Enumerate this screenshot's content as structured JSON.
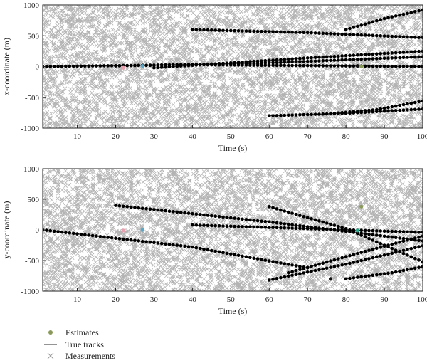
{
  "chart_data": [
    {
      "type": "scatter",
      "xlabel": "Time (s)",
      "ylabel": "x-coordinate (m)",
      "xlim": [
        1,
        100
      ],
      "ylim": [
        -1000,
        1000
      ],
      "x_ticks": [
        10,
        20,
        30,
        40,
        50,
        60,
        70,
        80,
        90,
        100
      ],
      "y_ticks": [
        -1000,
        -500,
        0,
        500,
        1000
      ],
      "grid": false,
      "measurements": {
        "name": "Measurements",
        "color": "#b3b3b3",
        "density": "dense",
        "range": [
          -1000,
          1000
        ]
      },
      "tracks": [
        {
          "points": [
            [
              1,
              0
            ],
            [
              40,
              30
            ],
            [
              100,
              0
            ]
          ]
        },
        {
          "points": [
            [
              20,
              10
            ],
            [
              60,
              60
            ],
            [
              100,
              160
            ]
          ]
        },
        {
          "points": [
            [
              30,
              -20
            ],
            [
              70,
              140
            ],
            [
              100,
              250
            ]
          ]
        },
        {
          "points": [
            [
              40,
              600
            ],
            [
              70,
              550
            ],
            [
              100,
              470
            ]
          ]
        },
        {
          "points": [
            [
              80,
              600
            ],
            [
              90,
              780
            ],
            [
              100,
              920
            ]
          ]
        },
        {
          "points": [
            [
              60,
              -800
            ],
            [
              80,
              -760
            ],
            [
              100,
              -690
            ]
          ]
        },
        {
          "points": [
            [
              75,
              -770
            ],
            [
              88,
              -700
            ],
            [
              100,
              -560
            ]
          ]
        }
      ],
      "estimates": [
        {
          "x": 22,
          "y": -20,
          "color": "#e9a1b0"
        },
        {
          "x": 27,
          "y": 10,
          "color": "#5aa7c7"
        },
        {
          "x": 84,
          "y": 0,
          "color": "#8a9a5b"
        },
        {
          "x": 83,
          "y": 10,
          "color": "#111111"
        }
      ]
    },
    {
      "type": "scatter",
      "xlabel": "Time (s)",
      "ylabel": "y-coordinate (m)",
      "xlim": [
        1,
        100
      ],
      "ylim": [
        -1000,
        1000
      ],
      "x_ticks": [
        10,
        20,
        30,
        40,
        50,
        60,
        70,
        80,
        90,
        100
      ],
      "y_ticks": [
        -1000,
        -500,
        0,
        500,
        1000
      ],
      "grid": false,
      "measurements": {
        "name": "Measurements",
        "color": "#b3b3b3",
        "density": "dense",
        "range": [
          -1000,
          1000
        ]
      },
      "tracks": [
        {
          "points": [
            [
              1,
              0
            ],
            [
              40,
              -280
            ],
            [
              70,
              -620
            ]
          ]
        },
        {
          "points": [
            [
              20,
              400
            ],
            [
              60,
              130
            ],
            [
              100,
              -180
            ]
          ]
        },
        {
          "points": [
            [
              40,
              80
            ],
            [
              70,
              20
            ],
            [
              100,
              -40
            ]
          ]
        },
        {
          "points": [
            [
              60,
              380
            ],
            [
              80,
              20
            ],
            [
              100,
              -520
            ]
          ]
        },
        {
          "points": [
            [
              65,
              -700
            ],
            [
              85,
              -350
            ],
            [
              100,
              -100
            ]
          ]
        },
        {
          "points": [
            [
              60,
              -820
            ],
            [
              80,
              -560
            ],
            [
              100,
              -260
            ]
          ]
        },
        {
          "points": [
            [
              80,
              -800
            ],
            [
              92,
              -700
            ],
            [
              100,
              -600
            ]
          ]
        }
      ],
      "estimates": [
        {
          "x": 22,
          "y": -10,
          "color": "#e9a1b0"
        },
        {
          "x": 27,
          "y": 0,
          "color": "#5aa7c7"
        },
        {
          "x": 84,
          "y": 380,
          "color": "#8a9a5b"
        },
        {
          "x": 83,
          "y": -10,
          "color": "#2aa58a"
        },
        {
          "x": 76,
          "y": -800,
          "color": "#111111"
        }
      ]
    }
  ],
  "legend": {
    "estimates_label": "Estimates",
    "tracks_label": "True tracks",
    "measurements_label": "Measurements",
    "estimates_color": "#8a9a5b",
    "tracks_color": "#555555",
    "measurements_color": "#9a9a9a"
  }
}
